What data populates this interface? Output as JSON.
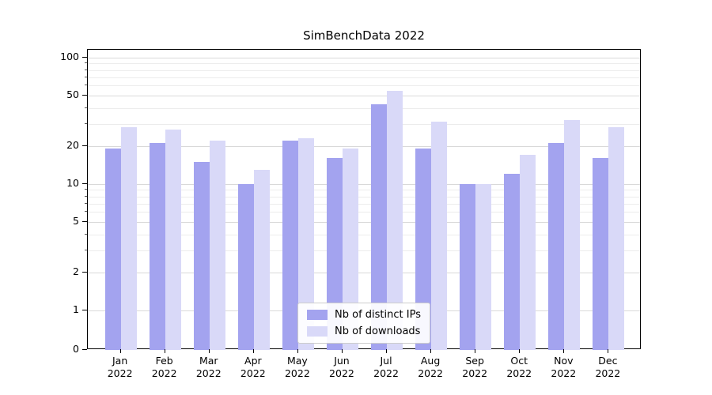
{
  "chart_data": {
    "type": "bar",
    "title": "SimBenchData 2022",
    "year_label": "2022",
    "categories": [
      "Jan",
      "Feb",
      "Mar",
      "Apr",
      "May",
      "Jun",
      "Jul",
      "Aug",
      "Sep",
      "Oct",
      "Nov",
      "Dec"
    ],
    "series": [
      {
        "name": "Nb of distinct IPs",
        "key": "distinct-ips",
        "color": "#a3a3ef",
        "values": [
          19,
          21,
          15,
          10,
          22,
          16,
          43,
          19,
          10,
          12,
          21,
          16
        ]
      },
      {
        "name": "Nb of downloads",
        "key": "downloads",
        "color": "#d9d9f8",
        "values": [
          28,
          27,
          22,
          13,
          23,
          19,
          55,
          31,
          10,
          17,
          32,
          28
        ]
      }
    ],
    "yticks": [
      0,
      1,
      2,
      5,
      10,
      20,
      50,
      100
    ],
    "yscale": "symlog",
    "ylim": [
      0,
      110
    ],
    "xlabel": "",
    "ylabel": "",
    "grid": true,
    "legend_position": "lower center"
  }
}
